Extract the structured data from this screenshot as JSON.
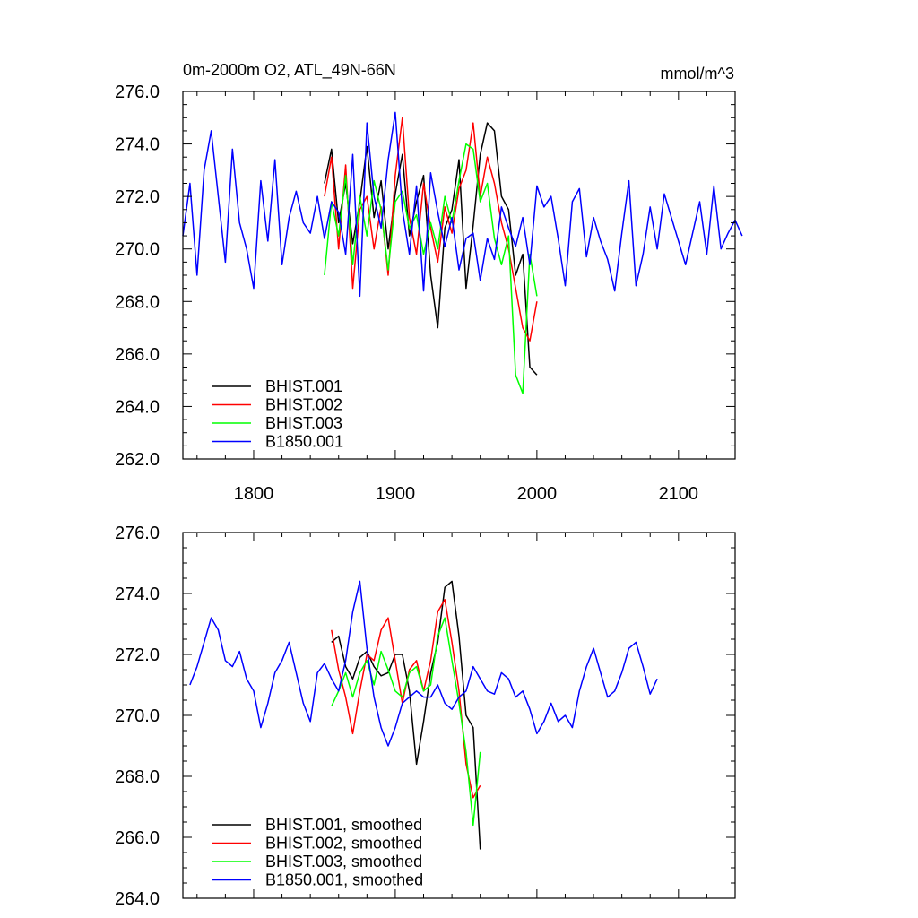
{
  "chart_data": [
    {
      "type": "line",
      "title": "0m-2000m O2, ATL_49N-66N",
      "units": "mmol/m^3",
      "xlim": [
        1750,
        2140
      ],
      "ylim": [
        262,
        276
      ],
      "x_ticks": [
        1800,
        1900,
        2000,
        2100
      ],
      "x_tick_labels": [
        "1800",
        "1900",
        "2000",
        "2100"
      ],
      "y_ticks": [
        262,
        264,
        266,
        268,
        270,
        272,
        274,
        276
      ],
      "y_tick_labels": [
        "262.0",
        "264.0",
        "266.0",
        "268.0",
        "270.0",
        "272.0",
        "274.0",
        "276.0"
      ],
      "legend_position": "bottom-left",
      "series": [
        {
          "name": "BHIST.001",
          "color": "#000000",
          "x_start": 1850,
          "x_step": 5,
          "values": [
            272.5,
            273.8,
            271.0,
            272.5,
            270.2,
            271.8,
            273.9,
            271.2,
            272.6,
            270.0,
            272.1,
            273.6,
            270.5,
            271.8,
            272.8,
            269.0,
            267.0,
            270.8,
            271.5,
            273.4,
            268.5,
            270.9,
            273.6,
            274.8,
            274.5,
            272.0,
            271.5,
            269.0,
            269.8,
            265.5,
            265.2
          ]
        },
        {
          "name": "BHIST.002",
          "color": "#ff0000",
          "x_start": 1850,
          "x_step": 5,
          "values": [
            272.0,
            273.5,
            270.0,
            273.2,
            268.5,
            271.5,
            272.0,
            270.0,
            271.6,
            269.0,
            272.8,
            275.0,
            271.2,
            269.8,
            272.5,
            270.8,
            269.5,
            271.6,
            270.6,
            272.3,
            273.0,
            274.8,
            272.0,
            273.5,
            272.5,
            271.0,
            270.0,
            268.5,
            267.0,
            266.5,
            268.0
          ]
        },
        {
          "name": "BHIST.003",
          "color": "#00ff00",
          "x_start": 1850,
          "x_step": 5,
          "values": [
            269.0,
            271.8,
            270.5,
            272.8,
            269.4,
            272.0,
            270.5,
            272.6,
            271.5,
            269.2,
            271.8,
            272.2,
            270.8,
            271.3,
            269.8,
            271.0,
            270.0,
            272.0,
            271.0,
            272.6,
            274.0,
            273.8,
            271.8,
            272.5,
            270.4,
            269.4,
            270.5,
            265.2,
            264.5,
            269.8,
            268.2
          ]
        },
        {
          "name": "B1850.001",
          "color": "#0000ff",
          "x_start": 1750,
          "x_step": 5,
          "values": [
            270.5,
            272.5,
            269.0,
            273.0,
            274.5,
            272.0,
            269.5,
            273.8,
            271.0,
            270.0,
            268.5,
            272.6,
            270.3,
            273.4,
            269.4,
            271.2,
            272.2,
            271.0,
            270.6,
            272.0,
            270.4,
            271.8,
            271.4,
            269.8,
            273.6,
            268.2,
            274.8,
            272.0,
            270.8,
            273.4,
            275.2,
            271.5,
            269.8,
            272.4,
            268.4,
            272.9,
            271.4,
            270.1,
            271.2,
            269.2,
            270.4,
            270.6,
            268.8,
            270.4,
            269.6,
            271.6,
            270.8,
            270.1,
            271.2,
            269.4,
            272.4,
            271.6,
            272.0,
            270.4,
            268.6,
            271.8,
            272.3,
            269.7,
            271.2,
            270.3,
            269.6,
            268.4,
            270.6,
            272.6,
            268.6,
            269.8,
            271.6,
            270.0,
            272.1,
            271.2,
            270.3,
            269.4,
            270.6,
            271.8,
            269.8,
            272.4,
            270.0,
            270.6,
            271.1,
            270.5
          ]
        }
      ]
    },
    {
      "type": "line",
      "xlim": [
        1750,
        2140
      ],
      "ylim": [
        264,
        276
      ],
      "x_ticks": [
        1800,
        1900,
        2000,
        2100
      ],
      "y_ticks": [
        264,
        266,
        268,
        270,
        272,
        274,
        276
      ],
      "y_tick_labels": [
        "264.0",
        "266.0",
        "268.0",
        "270.0",
        "272.0",
        "274.0",
        "276.0"
      ],
      "legend_position": "bottom-left",
      "series": [
        {
          "name": "BHIST.001, smoothed",
          "color": "#000000",
          "x_start": 1855,
          "x_step": 5,
          "values": [
            272.4,
            272.6,
            271.6,
            271.2,
            271.9,
            272.1,
            271.6,
            271.3,
            271.4,
            272.0,
            272.0,
            270.8,
            268.4,
            269.8,
            271.4,
            272.4,
            274.2,
            274.4,
            272.6,
            270.0,
            269.6,
            265.6
          ]
        },
        {
          "name": "BHIST.002, smoothed",
          "color": "#ff0000",
          "x_start": 1855,
          "x_step": 5,
          "values": [
            272.8,
            271.5,
            270.6,
            269.4,
            270.8,
            272.0,
            271.8,
            272.8,
            273.2,
            271.8,
            270.4,
            271.5,
            271.8,
            270.8,
            271.8,
            273.4,
            273.8,
            272.4,
            270.8,
            268.4,
            267.3,
            267.7
          ]
        },
        {
          "name": "BHIST.003, smoothed",
          "color": "#00ff00",
          "x_start": 1855,
          "x_step": 5,
          "values": [
            270.3,
            270.8,
            271.4,
            270.6,
            271.4,
            271.8,
            271.0,
            272.1,
            271.5,
            270.8,
            270.6,
            271.4,
            271.6,
            270.8,
            271.0,
            272.6,
            273.2,
            271.8,
            270.4,
            268.8,
            266.4,
            268.8
          ]
        },
        {
          "name": "B1850.001, smoothed",
          "color": "#0000ff",
          "x_start": 1755,
          "x_step": 5,
          "values": [
            271.0,
            271.6,
            272.4,
            273.2,
            272.8,
            271.8,
            271.6,
            272.1,
            271.2,
            270.8,
            269.6,
            270.4,
            271.4,
            271.8,
            272.4,
            271.4,
            270.4,
            269.8,
            271.4,
            271.7,
            271.2,
            270.8,
            271.8,
            273.4,
            274.4,
            272.2,
            270.6,
            269.6,
            269.0,
            269.6,
            270.4,
            270.6,
            270.8,
            270.6,
            270.6,
            271.0,
            270.4,
            270.2,
            270.6,
            270.8,
            271.6,
            271.2,
            270.8,
            270.7,
            271.4,
            271.2,
            270.6,
            270.8,
            270.2,
            269.4,
            269.8,
            270.4,
            269.8,
            270.0,
            269.6,
            270.8,
            271.6,
            272.2,
            271.4,
            270.6,
            270.8,
            271.4,
            272.2,
            272.4,
            271.6,
            270.7,
            271.2
          ]
        }
      ]
    }
  ]
}
